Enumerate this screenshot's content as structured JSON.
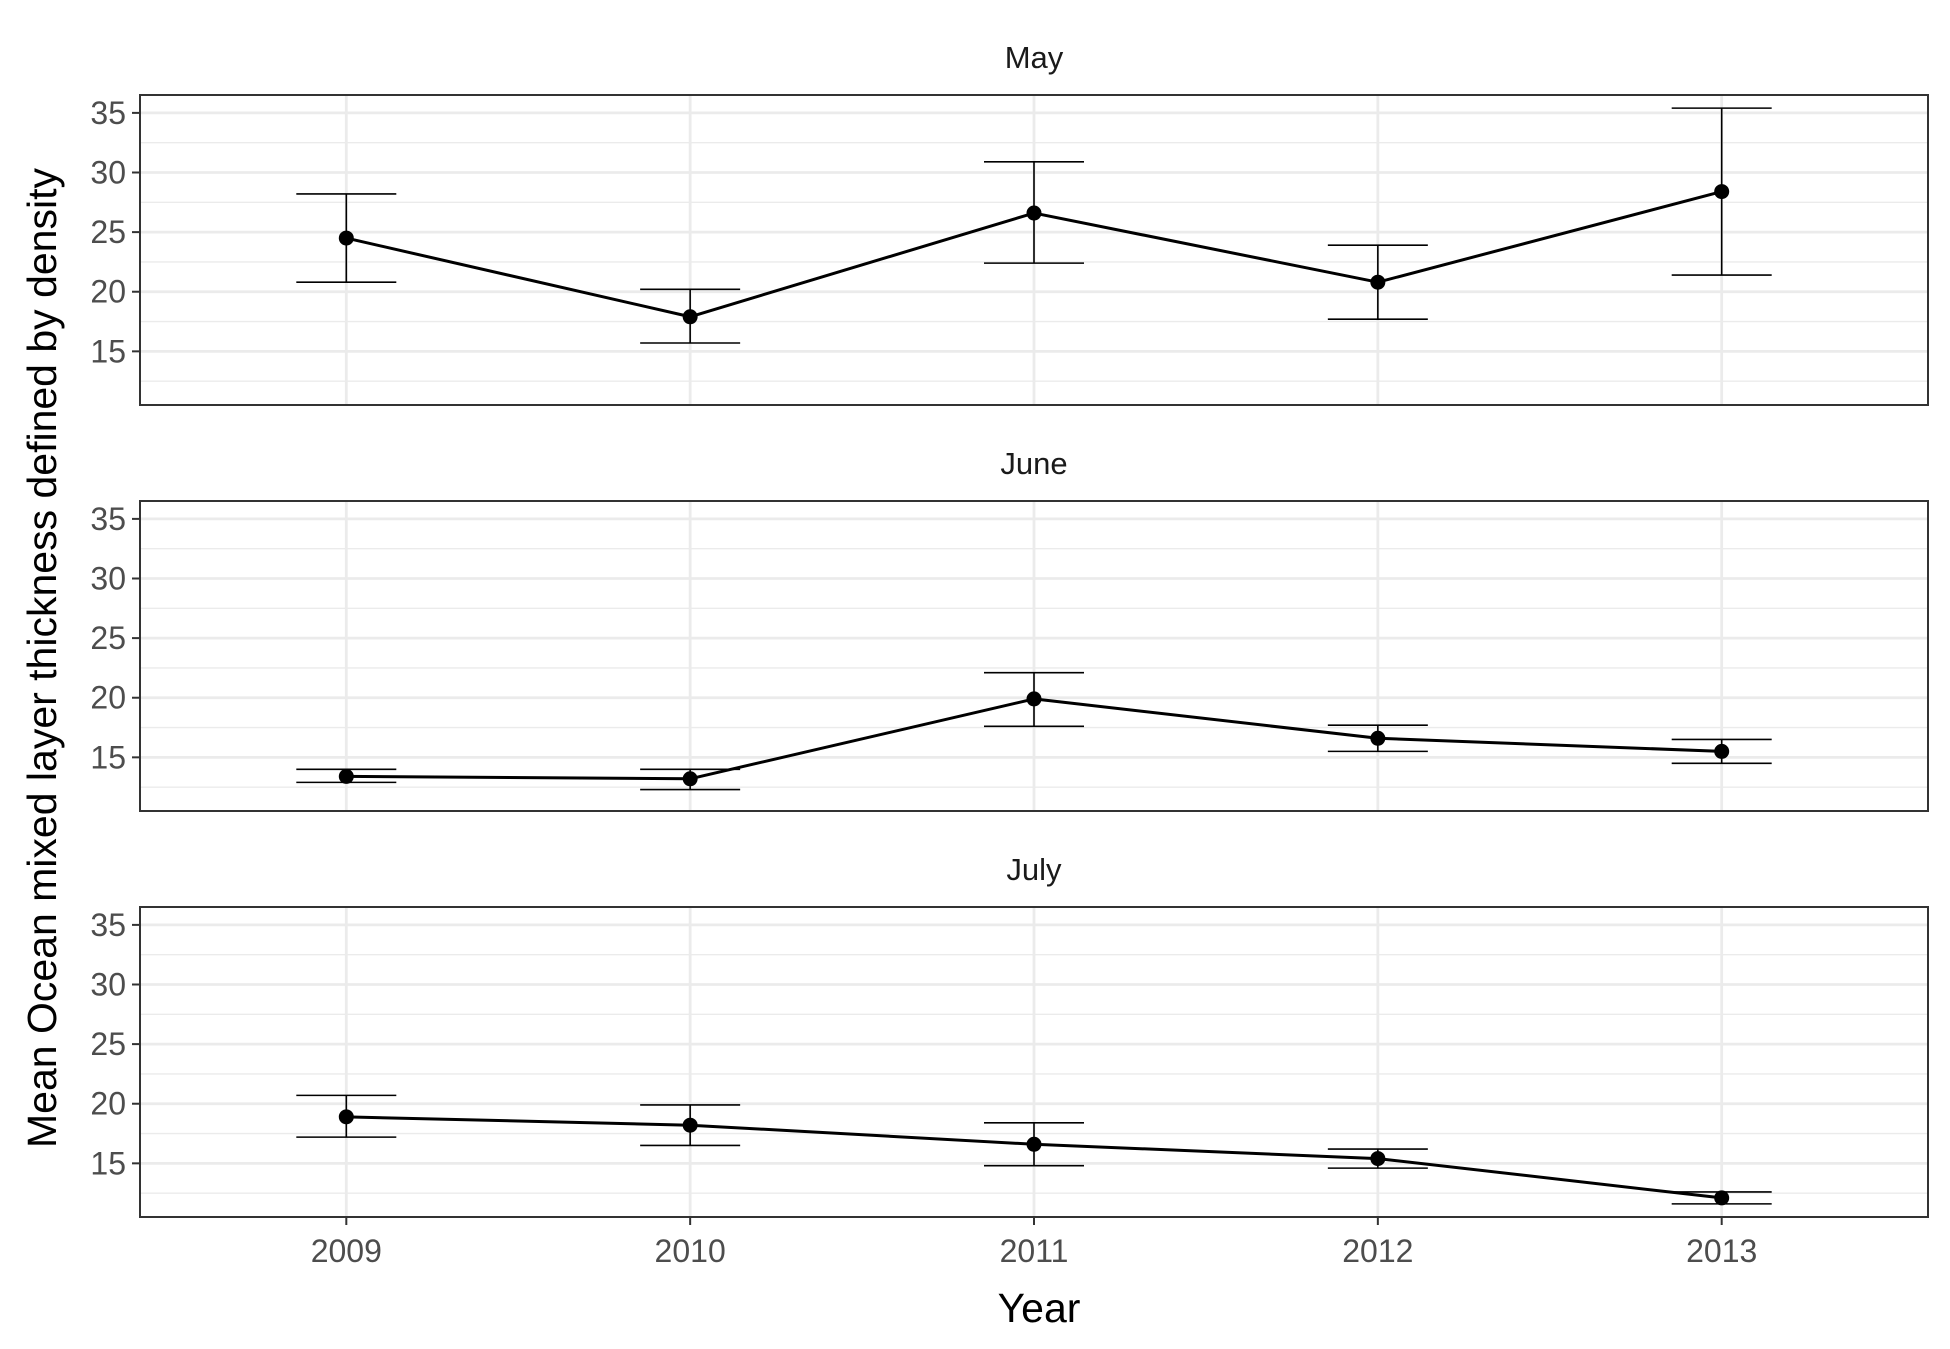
{
  "chart_data": {
    "type": "line",
    "xlabel": "Year",
    "ylabel": "Mean Ocean mixed layer thickness defined by density",
    "x": [
      2009,
      2010,
      2011,
      2012,
      2013
    ],
    "x_tick_labels": [
      "2009",
      "2010",
      "2011",
      "2012",
      "2013"
    ],
    "xlim": [
      2008.4,
      2013.6
    ],
    "ylim": [
      10.5,
      36.5
    ],
    "y_ticks": [
      15,
      20,
      25,
      30,
      35
    ],
    "y_tick_labels": [
      "15",
      "20",
      "25",
      "30",
      "35"
    ],
    "grid": true,
    "error_bars": true,
    "panels": [
      {
        "title": "May",
        "values": [
          24.5,
          17.9,
          26.6,
          20.8,
          28.4
        ],
        "lower": [
          20.8,
          15.7,
          22.4,
          17.7,
          21.4
        ],
        "upper": [
          28.2,
          20.2,
          30.9,
          23.9,
          35.4
        ]
      },
      {
        "title": "June",
        "values": [
          13.4,
          13.2,
          19.9,
          16.6,
          15.5
        ],
        "lower": [
          12.9,
          12.3,
          17.6,
          15.5,
          14.5
        ],
        "upper": [
          14.0,
          14.0,
          22.1,
          17.7,
          16.5
        ]
      },
      {
        "title": "July",
        "values": [
          18.9,
          18.2,
          16.6,
          15.4,
          12.1
        ],
        "lower": [
          17.2,
          16.5,
          14.8,
          14.6,
          11.6
        ],
        "upper": [
          20.7,
          19.9,
          18.4,
          16.2,
          12.6
        ]
      }
    ]
  },
  "colors": {
    "line": "#000000",
    "point": "#000000",
    "grid": "#ebebeb",
    "panel_border": "#333333",
    "tick_text": "#4d4d4d"
  }
}
